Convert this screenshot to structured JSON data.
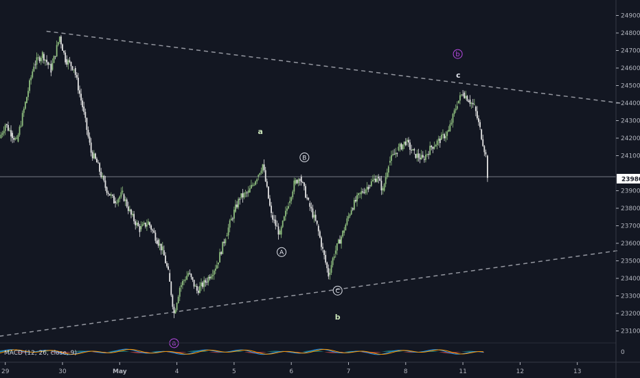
{
  "chart_data": {
    "type": "candlestick",
    "price_axis": {
      "ticks": [
        23100,
        23200,
        23300,
        23400,
        23500,
        23600,
        23700,
        23800,
        23900,
        24100,
        24200,
        24300,
        24400,
        24500,
        24600,
        24700,
        24800,
        24900
      ],
      "range": [
        23040,
        24990
      ],
      "current_price_label": "23980",
      "current_price": 23980
    },
    "time_axis": {
      "ticks": [
        {
          "label": "29",
          "day": -1,
          "bold": false
        },
        {
          "label": "30",
          "day": 0,
          "bold": false
        },
        {
          "label": "May",
          "day": 1,
          "bold": true
        },
        {
          "label": "4",
          "day": 2,
          "bold": false
        },
        {
          "label": "5",
          "day": 3,
          "bold": false
        },
        {
          "label": "6",
          "day": 4,
          "bold": false
        },
        {
          "label": "7",
          "day": 5,
          "bold": false
        },
        {
          "label": "8",
          "day": 6,
          "bold": false
        },
        {
          "label": "11",
          "day": 7,
          "bold": false
        },
        {
          "label": "12",
          "day": 8,
          "bold": false
        },
        {
          "label": "13",
          "day": 9,
          "bold": false
        }
      ]
    },
    "price_path": [
      [
        -1.1,
        24200
      ],
      [
        -1.0,
        24280
      ],
      [
        -0.9,
        24230
      ],
      [
        -0.8,
        24180
      ],
      [
        -0.65,
        24400
      ],
      [
        -0.5,
        24620
      ],
      [
        -0.35,
        24680
      ],
      [
        -0.2,
        24590
      ],
      [
        -0.05,
        24780
      ],
      [
        0.05,
        24650
      ],
      [
        0.2,
        24600
      ],
      [
        0.35,
        24380
      ],
      [
        0.5,
        24120
      ],
      [
        0.6,
        24060
      ],
      [
        0.75,
        23920
      ],
      [
        0.9,
        23840
      ],
      [
        1.05,
        23880
      ],
      [
        1.2,
        23760
      ],
      [
        1.35,
        23680
      ],
      [
        1.5,
        23720
      ],
      [
        1.65,
        23620
      ],
      [
        1.75,
        23560
      ],
      [
        1.85,
        23430
      ],
      [
        1.95,
        23200
      ],
      [
        2.05,
        23350
      ],
      [
        2.2,
        23430
      ],
      [
        2.35,
        23330
      ],
      [
        2.5,
        23380
      ],
      [
        2.7,
        23480
      ],
      [
        2.85,
        23640
      ],
      [
        3.0,
        23780
      ],
      [
        3.1,
        23860
      ],
      [
        3.25,
        23890
      ],
      [
        3.4,
        23980
      ],
      [
        3.5,
        24050
      ],
      [
        3.65,
        23760
      ],
      [
        3.8,
        23650
      ],
      [
        3.95,
        23830
      ],
      [
        4.05,
        23940
      ],
      [
        4.15,
        23980
      ],
      [
        4.3,
        23830
      ],
      [
        4.45,
        23700
      ],
      [
        4.55,
        23560
      ],
      [
        4.65,
        23420
      ],
      [
        4.75,
        23540
      ],
      [
        4.9,
        23660
      ],
      [
        5.05,
        23800
      ],
      [
        5.2,
        23880
      ],
      [
        5.35,
        23930
      ],
      [
        5.5,
        23980
      ],
      [
        5.6,
        23900
      ],
      [
        5.7,
        24060
      ],
      [
        5.85,
        24130
      ],
      [
        6.0,
        24180
      ],
      [
        6.15,
        24110
      ],
      [
        6.3,
        24080
      ],
      [
        6.45,
        24150
      ],
      [
        6.6,
        24190
      ],
      [
        6.75,
        24240
      ],
      [
        6.9,
        24400
      ],
      [
        7.0,
        24460
      ],
      [
        7.1,
        24420
      ],
      [
        7.2,
        24380
      ],
      [
        7.3,
        24250
      ],
      [
        7.4,
        24100
      ],
      [
        7.43,
        23990
      ]
    ],
    "trendlines": [
      {
        "name": "upper",
        "style": "dashed",
        "points": [
          [
            -0.28,
            24810
          ],
          [
            9.75,
            24400
          ]
        ]
      },
      {
        "name": "lower",
        "style": "dashed",
        "points": [
          [
            -1.1,
            23070
          ],
          [
            9.75,
            23560
          ]
        ]
      }
    ],
    "annotations": [
      {
        "label": "a",
        "style": "green",
        "day": 3.46,
        "price": 24240
      },
      {
        "label": "B",
        "style": "circled",
        "day": 4.23,
        "price": 24090
      },
      {
        "label": "A",
        "style": "circled",
        "day": 3.83,
        "price": 23550
      },
      {
        "label": "C",
        "style": "circled",
        "day": 4.81,
        "price": 23330
      },
      {
        "label": "b",
        "style": "green",
        "day": 4.81,
        "price": 23180
      },
      {
        "label": "c",
        "style": "white",
        "day": 6.92,
        "price": 24560
      },
      {
        "label": "b",
        "style": "purple-circled",
        "day": 6.91,
        "price": 24680
      },
      {
        "label": "a",
        "style": "purple-circled",
        "day": 1.95,
        "price": 23030
      }
    ],
    "macd": {
      "label": "MACD (12, 26, close, 9)",
      "axis_tick": "0"
    }
  },
  "colors": {
    "background": "#131722",
    "candle_green": "#8fbf7f",
    "candle_white": "#e6e6e6",
    "trendline": "#9598a1",
    "price_line": "#787b86",
    "purple": "#b94ae6",
    "macd_blue": "#2196f3",
    "macd_red": "#ef5350",
    "macd_teal": "#26a69a"
  }
}
